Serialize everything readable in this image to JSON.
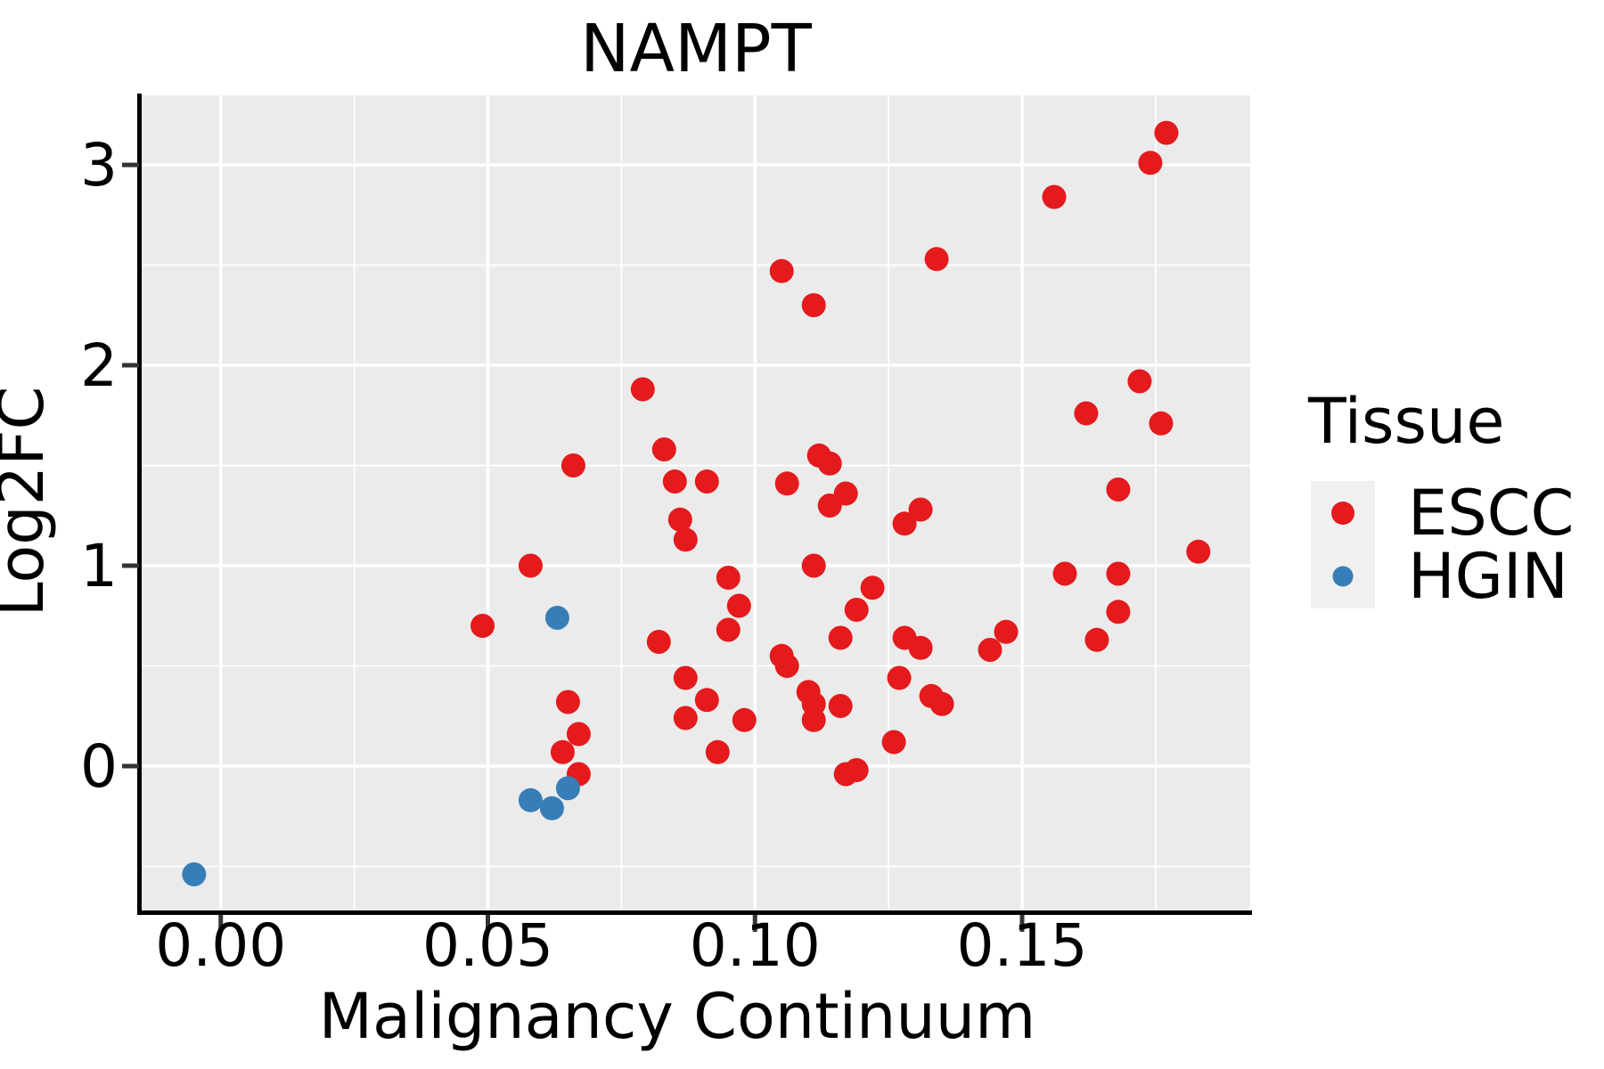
{
  "title": "NAMPT",
  "axes": {
    "x": {
      "label": "Malignancy Continuum",
      "tick_values": [
        0.0,
        0.05,
        0.1,
        0.15
      ],
      "tick_labels": [
        "0.00",
        "0.05",
        "0.10",
        "0.15"
      ],
      "range": [
        -0.0148,
        0.1927
      ]
    },
    "y": {
      "label": "Log2FC",
      "tick_values": [
        0,
        1,
        2,
        3
      ],
      "tick_labels": [
        "0",
        "1",
        "2",
        "3"
      ],
      "range": [
        -0.72,
        3.347
      ]
    }
  },
  "legend": {
    "title": "Tissue",
    "entries": [
      {
        "label": "ESCC",
        "color": "#E41A1C"
      },
      {
        "label": "HGIN",
        "color": "#377EB8"
      }
    ]
  },
  "colors": {
    "panel_background": "#EBEBEB",
    "gridline": "#FFFFFF",
    "axis_line": "#000000",
    "tick_mark": "#333333",
    "legend_key_background": "#F0F0F0",
    "escc": "#E41A1C",
    "hgin": "#377EB8"
  },
  "chart_data": {
    "type": "scatter",
    "title": "NAMPT",
    "xlabel": "Malignancy Continuum",
    "ylabel": "Log2FC",
    "xlim": [
      -0.0148,
      0.1927
    ],
    "ylim": [
      -0.72,
      3.347
    ],
    "x_major_ticks": [
      0.0,
      0.05,
      0.1,
      0.15
    ],
    "x_minor_ticks": [
      0.025,
      0.075,
      0.125,
      0.175
    ],
    "y_major_ticks": [
      0,
      1,
      2,
      3
    ],
    "y_minor_ticks": [
      -0.5,
      0.5,
      1.5,
      2.5
    ],
    "grid": "on",
    "legend_position": "right",
    "point_radius_px": 13.5,
    "series": [
      {
        "name": "ESCC",
        "color": "#E41A1C",
        "points": [
          [
            0.177,
            3.16
          ],
          [
            0.174,
            3.01
          ],
          [
            0.156,
            2.84
          ],
          [
            0.134,
            2.53
          ],
          [
            0.105,
            2.47
          ],
          [
            0.111,
            2.3
          ],
          [
            0.172,
            1.92
          ],
          [
            0.079,
            1.88
          ],
          [
            0.162,
            1.76
          ],
          [
            0.176,
            1.71
          ],
          [
            0.083,
            1.58
          ],
          [
            0.112,
            1.55
          ],
          [
            0.114,
            1.51
          ],
          [
            0.066,
            1.5
          ],
          [
            0.085,
            1.42
          ],
          [
            0.091,
            1.42
          ],
          [
            0.106,
            1.41
          ],
          [
            0.168,
            1.38
          ],
          [
            0.117,
            1.36
          ],
          [
            0.114,
            1.3
          ],
          [
            0.131,
            1.28
          ],
          [
            0.128,
            1.21
          ],
          [
            0.086,
            1.23
          ],
          [
            0.087,
            1.13
          ],
          [
            0.183,
            1.07
          ],
          [
            0.058,
            1.0
          ],
          [
            0.111,
            1.0
          ],
          [
            0.158,
            0.96
          ],
          [
            0.168,
            0.96
          ],
          [
            0.095,
            0.94
          ],
          [
            0.122,
            0.89
          ],
          [
            0.097,
            0.8
          ],
          [
            0.119,
            0.78
          ],
          [
            0.168,
            0.77
          ],
          [
            0.049,
            0.7
          ],
          [
            0.095,
            0.68
          ],
          [
            0.147,
            0.67
          ],
          [
            0.116,
            0.64
          ],
          [
            0.128,
            0.64
          ],
          [
            0.164,
            0.63
          ],
          [
            0.082,
            0.62
          ],
          [
            0.131,
            0.59
          ],
          [
            0.144,
            0.58
          ],
          [
            0.105,
            0.55
          ],
          [
            0.106,
            0.5
          ],
          [
            0.087,
            0.44
          ],
          [
            0.127,
            0.44
          ],
          [
            0.11,
            0.37
          ],
          [
            0.133,
            0.35
          ],
          [
            0.091,
            0.33
          ],
          [
            0.065,
            0.32
          ],
          [
            0.111,
            0.31
          ],
          [
            0.135,
            0.31
          ],
          [
            0.116,
            0.3
          ],
          [
            0.087,
            0.24
          ],
          [
            0.098,
            0.23
          ],
          [
            0.111,
            0.23
          ],
          [
            0.067,
            0.16
          ],
          [
            0.126,
            0.12
          ],
          [
            0.093,
            0.07
          ],
          [
            0.064,
            0.07
          ],
          [
            0.119,
            -0.02
          ],
          [
            0.067,
            -0.04
          ],
          [
            0.117,
            -0.04
          ]
        ]
      },
      {
        "name": "HGIN",
        "color": "#377EB8",
        "points": [
          [
            0.063,
            0.74
          ],
          [
            0.065,
            -0.11
          ],
          [
            0.058,
            -0.17
          ],
          [
            0.062,
            -0.21
          ],
          [
            -0.005,
            -0.54
          ]
        ]
      }
    ]
  },
  "layout_note": ""
}
